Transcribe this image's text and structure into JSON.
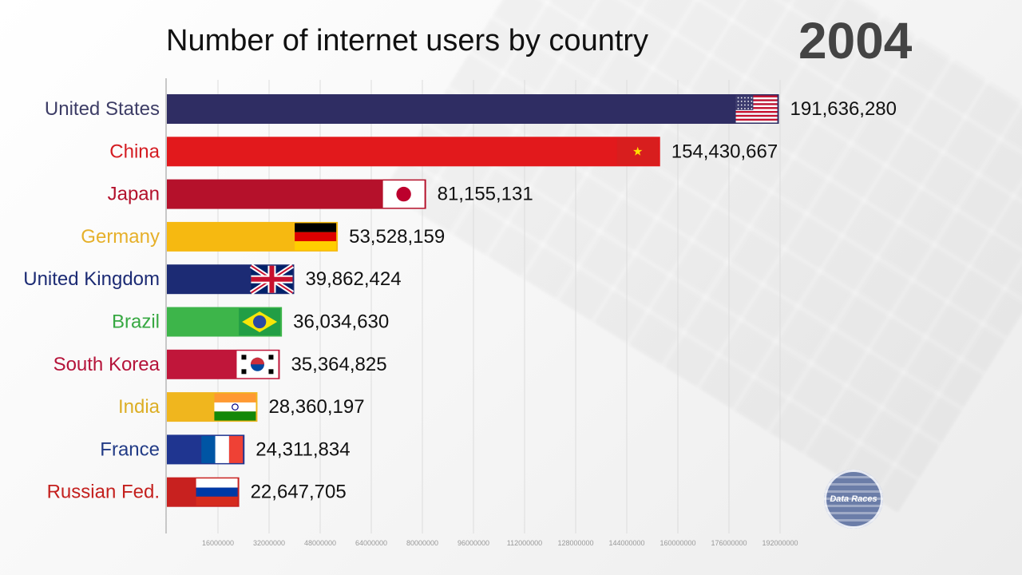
{
  "header": {
    "title": "Number of internet users by country",
    "year": "2004"
  },
  "logo": {
    "text": "Data Races"
  },
  "chart_data": {
    "type": "bar",
    "orientation": "horizontal",
    "title": "Number of internet users by country",
    "period": "2004",
    "xlabel": "",
    "ylabel": "",
    "xlim": [
      0,
      200000000
    ],
    "grid": true,
    "x_tick_labels": [
      "16000000",
      "32000000",
      "48000000",
      "64000000",
      "80000000",
      "96000000",
      "112000000",
      "128000000",
      "144000000",
      "160000000",
      "176000000",
      "192000000"
    ],
    "categories": [
      "United States",
      "China",
      "Japan",
      "Germany",
      "United Kingdom",
      "Brazil",
      "South Korea",
      "India",
      "France",
      "Russian Fed."
    ],
    "values": [
      191636280,
      154430667,
      81155131,
      53528159,
      39862424,
      36034630,
      35364825,
      28360197,
      24311834,
      22647705
    ],
    "value_labels": [
      "191,636,280",
      "154,430,667",
      "81,155,131",
      "53,528,159",
      "39,862,424",
      "36,034,630",
      "35,364,825",
      "28,360,197",
      "24,311,834",
      "22,647,705"
    ],
    "colors": [
      "#2f2d63",
      "#e2191c",
      "#b5112b",
      "#f6b911",
      "#1c2b74",
      "#3db54a",
      "#c0163a",
      "#f0b61e",
      "#1f3590",
      "#c8211f"
    ],
    "label_colors": [
      "#3d3d66",
      "#d41c22",
      "#b3112c",
      "#e6b02a",
      "#1c2b74",
      "#37a842",
      "#b5143a",
      "#dcae24",
      "#223b86",
      "#c4201e"
    ],
    "flag_icons": [
      "usa-flag-icon",
      "china-flag-icon",
      "japan-flag-icon",
      "germany-flag-icon",
      "uk-flag-icon",
      "brazil-flag-icon",
      "south-korea-flag-icon",
      "india-flag-icon",
      "france-flag-icon",
      "russia-flag-icon"
    ]
  }
}
